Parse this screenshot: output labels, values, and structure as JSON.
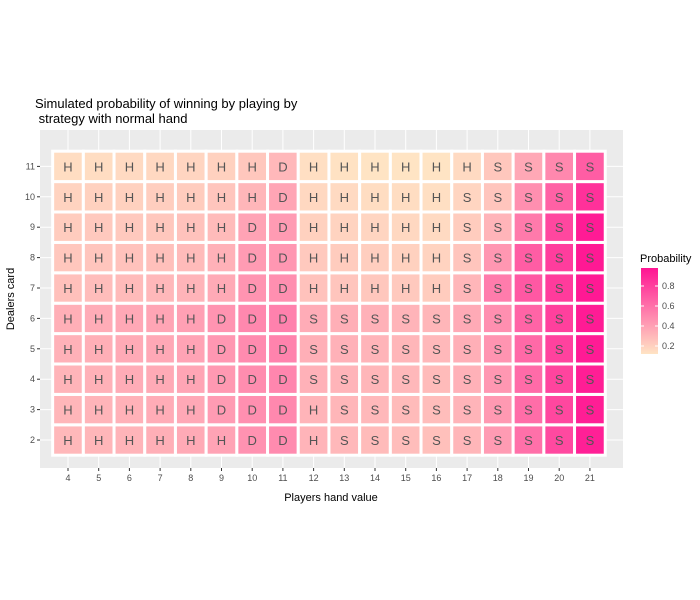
{
  "chart_data": {
    "type": "heatmap",
    "title_lines": [
      "Simulated probability of winning by playing by",
      " strategy with normal hand"
    ],
    "xlabel": "Players hand value",
    "ylabel": "Dealers card",
    "x": [
      4,
      5,
      6,
      7,
      8,
      9,
      10,
      11,
      12,
      13,
      14,
      15,
      16,
      17,
      18,
      19,
      20,
      21
    ],
    "y": [
      2,
      3,
      4,
      5,
      6,
      7,
      8,
      9,
      10,
      11
    ],
    "grid": true,
    "legend": {
      "title": "Probability",
      "position": "right",
      "ticks": [
        0.2,
        0.4,
        0.6,
        0.8
      ],
      "range": [
        0.12,
        0.98
      ],
      "low_color": "#FFE4C4",
      "high_color": "#FF1493"
    },
    "rows": [
      {
        "dealer": 2,
        "actions": [
          "H",
          "H",
          "H",
          "H",
          "H",
          "H",
          "D",
          "D",
          "H",
          "S",
          "S",
          "S",
          "S",
          "S",
          "S",
          "S",
          "S",
          "S"
        ],
        "values": [
          0.3,
          0.31,
          0.32,
          0.34,
          0.36,
          0.39,
          0.46,
          0.49,
          0.32,
          0.3,
          0.29,
          0.28,
          0.27,
          0.31,
          0.42,
          0.6,
          0.76,
          0.93
        ]
      },
      {
        "dealer": 3,
        "actions": [
          "H",
          "H",
          "H",
          "H",
          "H",
          "D",
          "D",
          "D",
          "H",
          "S",
          "S",
          "S",
          "S",
          "S",
          "S",
          "S",
          "S",
          "S"
        ],
        "values": [
          0.31,
          0.32,
          0.33,
          0.35,
          0.37,
          0.42,
          0.47,
          0.5,
          0.32,
          0.31,
          0.3,
          0.29,
          0.28,
          0.32,
          0.43,
          0.61,
          0.77,
          0.94
        ]
      },
      {
        "dealer": 4,
        "actions": [
          "H",
          "H",
          "H",
          "H",
          "H",
          "D",
          "D",
          "D",
          "S",
          "S",
          "S",
          "S",
          "S",
          "S",
          "S",
          "S",
          "S",
          "S"
        ],
        "values": [
          0.32,
          0.33,
          0.35,
          0.36,
          0.38,
          0.43,
          0.48,
          0.51,
          0.33,
          0.32,
          0.31,
          0.3,
          0.29,
          0.33,
          0.44,
          0.62,
          0.78,
          0.94
        ]
      },
      {
        "dealer": 5,
        "actions": [
          "H",
          "H",
          "H",
          "H",
          "H",
          "D",
          "D",
          "D",
          "S",
          "S",
          "S",
          "S",
          "S",
          "S",
          "S",
          "S",
          "S",
          "S"
        ],
        "values": [
          0.33,
          0.34,
          0.36,
          0.37,
          0.39,
          0.44,
          0.49,
          0.52,
          0.34,
          0.33,
          0.32,
          0.31,
          0.3,
          0.34,
          0.45,
          0.63,
          0.79,
          0.95
        ]
      },
      {
        "dealer": 6,
        "actions": [
          "H",
          "H",
          "H",
          "H",
          "H",
          "D",
          "D",
          "D",
          "S",
          "S",
          "S",
          "S",
          "S",
          "S",
          "S",
          "S",
          "S",
          "S"
        ],
        "values": [
          0.34,
          0.35,
          0.37,
          0.38,
          0.4,
          0.45,
          0.5,
          0.53,
          0.35,
          0.34,
          0.33,
          0.32,
          0.31,
          0.36,
          0.47,
          0.65,
          0.8,
          0.95
        ]
      },
      {
        "dealer": 7,
        "actions": [
          "H",
          "H",
          "H",
          "H",
          "H",
          "H",
          "D",
          "D",
          "H",
          "H",
          "H",
          "H",
          "H",
          "S",
          "S",
          "S",
          "S",
          "S"
        ],
        "values": [
          0.27,
          0.28,
          0.29,
          0.3,
          0.32,
          0.36,
          0.45,
          0.47,
          0.26,
          0.25,
          0.24,
          0.23,
          0.22,
          0.31,
          0.55,
          0.7,
          0.82,
          0.96
        ]
      },
      {
        "dealer": 8,
        "actions": [
          "H",
          "H",
          "H",
          "H",
          "H",
          "H",
          "D",
          "D",
          "H",
          "H",
          "H",
          "H",
          "H",
          "S",
          "S",
          "S",
          "S",
          "S"
        ],
        "values": [
          0.24,
          0.25,
          0.26,
          0.27,
          0.29,
          0.33,
          0.42,
          0.44,
          0.23,
          0.22,
          0.21,
          0.2,
          0.19,
          0.25,
          0.44,
          0.68,
          0.81,
          0.96
        ]
      },
      {
        "dealer": 9,
        "actions": [
          "H",
          "H",
          "H",
          "H",
          "H",
          "H",
          "D",
          "D",
          "H",
          "H",
          "H",
          "H",
          "H",
          "S",
          "S",
          "S",
          "S",
          "S"
        ],
        "values": [
          0.22,
          0.23,
          0.23,
          0.24,
          0.26,
          0.29,
          0.39,
          0.42,
          0.2,
          0.19,
          0.18,
          0.17,
          0.16,
          0.22,
          0.32,
          0.56,
          0.77,
          0.95
        ]
      },
      {
        "dealer": 10,
        "actions": [
          "H",
          "H",
          "H",
          "H",
          "H",
          "H",
          "H",
          "D",
          "H",
          "H",
          "H",
          "H",
          "H",
          "S",
          "S",
          "S",
          "S",
          "S"
        ],
        "values": [
          0.19,
          0.2,
          0.2,
          0.21,
          0.22,
          0.25,
          0.31,
          0.38,
          0.17,
          0.16,
          0.15,
          0.15,
          0.14,
          0.18,
          0.25,
          0.47,
          0.66,
          0.86
        ]
      },
      {
        "dealer": 11,
        "actions": [
          "H",
          "H",
          "H",
          "H",
          "H",
          "H",
          "H",
          "D",
          "H",
          "H",
          "H",
          "H",
          "H",
          "H",
          "S",
          "S",
          "S",
          "S"
        ],
        "values": [
          0.15,
          0.15,
          0.16,
          0.17,
          0.18,
          0.2,
          0.24,
          0.3,
          0.14,
          0.13,
          0.12,
          0.12,
          0.11,
          0.16,
          0.24,
          0.37,
          0.5,
          0.68
        ]
      }
    ]
  }
}
